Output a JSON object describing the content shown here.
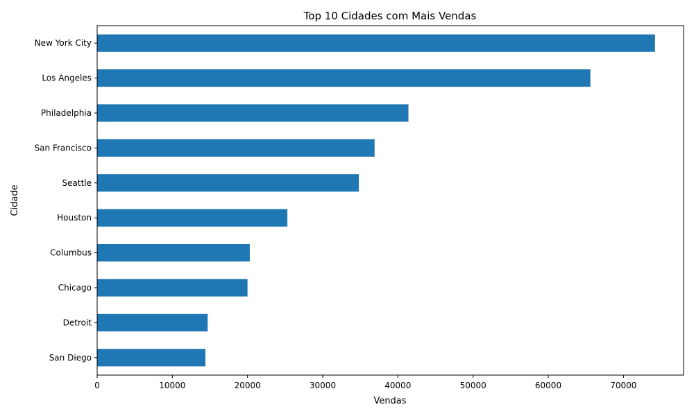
{
  "chart_data": {
    "type": "bar",
    "orientation": "horizontal",
    "title": "Top 10 Cidades com Mais Vendas",
    "xlabel": "Vendas",
    "ylabel": "Cidade",
    "categories": [
      "New York City",
      "Los Angeles",
      "Philadelphia",
      "San Francisco",
      "Seattle",
      "Houston",
      "Columbus",
      "Chicago",
      "Detroit",
      "San Diego"
    ],
    "values": [
      74200,
      65600,
      41400,
      36900,
      34800,
      25300,
      20300,
      20000,
      14700,
      14400
    ],
    "xlim": [
      0,
      78000
    ],
    "x_ticks": [
      0,
      10000,
      20000,
      30000,
      40000,
      50000,
      60000,
      70000
    ],
    "bar_color": "#1f77b4",
    "grid": false,
    "legend": "none"
  }
}
